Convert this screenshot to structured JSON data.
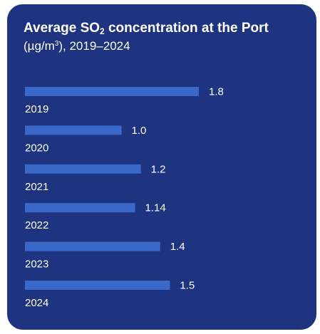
{
  "title": {
    "prefix": "Average SO",
    "subscript": "2",
    "suffix": " concentration at the Port"
  },
  "subtitle": {
    "prefix": "(µg/m",
    "superscript": "3",
    "suffix": "), 2019–2024"
  },
  "colors": {
    "background": "#1f3480",
    "bar": "#3a68c8",
    "text": "#ffffff"
  },
  "chart_data": {
    "type": "bar",
    "orientation": "horizontal",
    "title": "Average SO2 concentration at the Port",
    "subtitle": "(µg/m3), 2019–2024",
    "categories": [
      "2019",
      "2020",
      "2021",
      "2022",
      "2023",
      "2024"
    ],
    "values": [
      1.8,
      1.0,
      1.2,
      1.14,
      1.4,
      1.5
    ],
    "value_labels": [
      "1.8",
      "1.0",
      "1.2",
      "1.14",
      "1.4",
      "1.5"
    ],
    "xlim": [
      0,
      1.8
    ],
    "grid": false,
    "legend": "none"
  }
}
